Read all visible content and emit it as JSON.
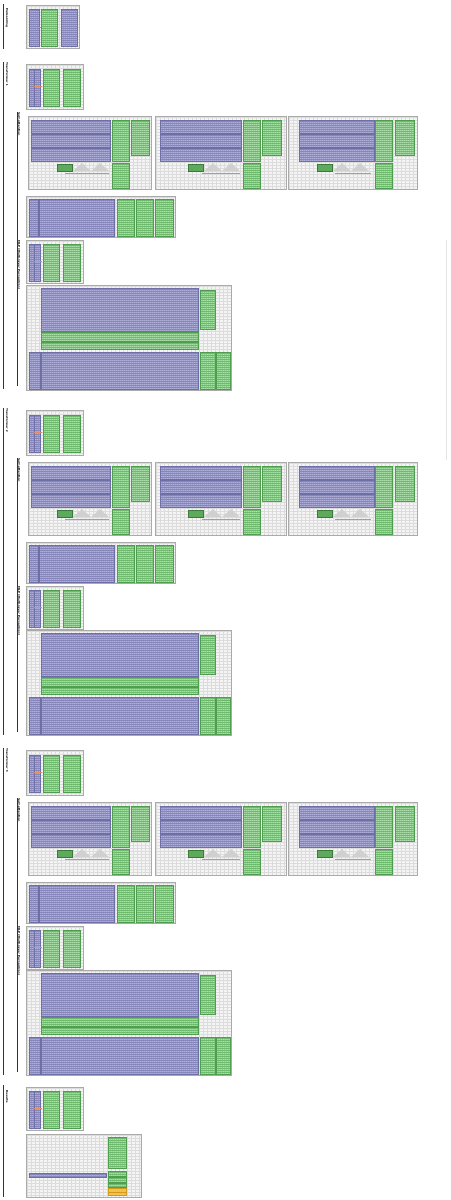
{
  "sections": {
    "embedding": "Embedding",
    "transformer1": "Transformer 1",
    "transformer2": "Transformer 2",
    "transformer3": "Transformer 3",
    "results": "Results"
  },
  "subsections": {
    "self_attention": "Self-attention",
    "mlp": "MLP (Multi-layer Perceptron)"
  },
  "colors": {
    "query_key_value": "#9d9dcc",
    "weights": "#8ed18e",
    "attention_line": "#e08a6a",
    "output": "#f2c14e"
  }
}
